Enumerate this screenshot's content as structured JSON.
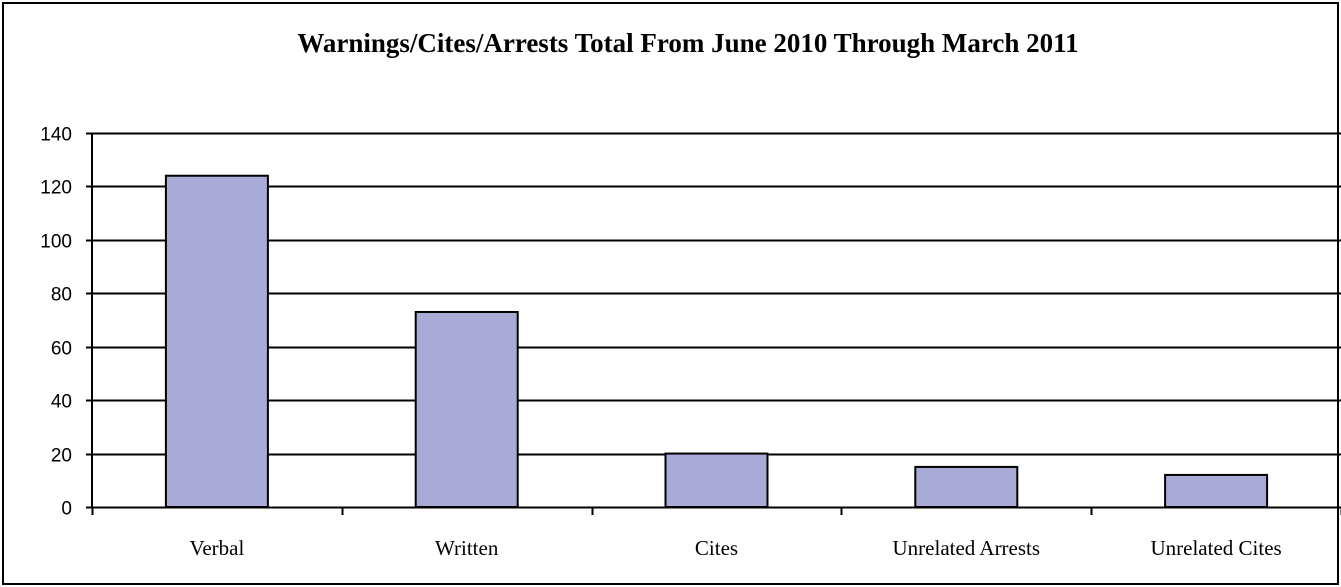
{
  "chart_data": {
    "type": "bar",
    "title": "Warnings/Cites/Arrests Total From June 2010 Through March 2011",
    "categories": [
      "Verbal",
      "Written",
      "Cites",
      "Unrelated Arrests",
      "Unrelated Cites"
    ],
    "values": [
      124,
      73,
      20,
      15,
      12
    ],
    "ylim": [
      0,
      140
    ],
    "yticks": [
      0,
      20,
      40,
      60,
      80,
      100,
      120,
      140
    ],
    "xlabel": "",
    "ylabel": "",
    "grid": true,
    "legend": "none",
    "colors": {
      "bar_fill": "#aaaad7",
      "bar_stroke": "#000000",
      "grid": "#000000",
      "axis": "#000000"
    }
  }
}
